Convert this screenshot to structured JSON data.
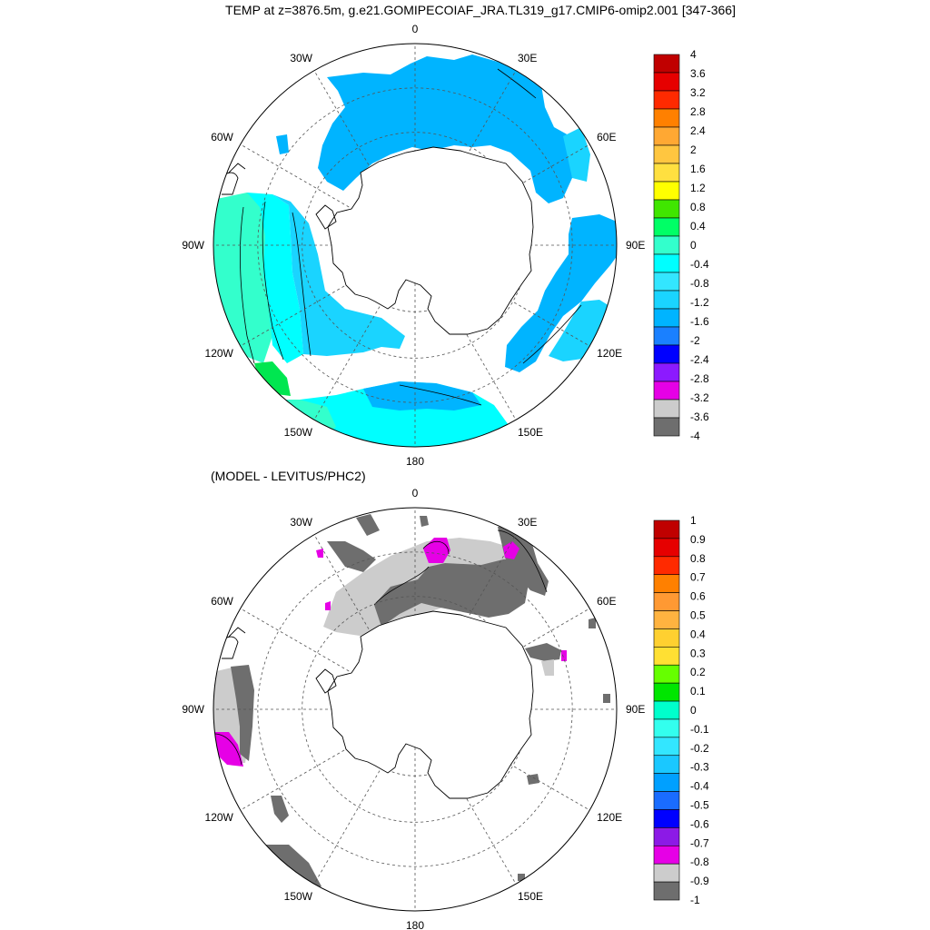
{
  "title": "TEMP at z=3876.5m, g.e21.GOMIPECOIAF_JRA.TL319_g17.CMIP6-omip2.001 [347-366]",
  "subtitle": "(MODEL - LEVITUS/PHC2)",
  "longitude_labels": [
    "0",
    "30E",
    "60E",
    "90E",
    "120E",
    "150E",
    "180",
    "150W",
    "120W",
    "90W",
    "60W",
    "30W"
  ],
  "panels": [
    {
      "id": "model",
      "colorbar": {
        "labels": [
          "4",
          "3.6",
          "3.2",
          "2.8",
          "2.4",
          "2",
          "1.6",
          "1.2",
          "0.8",
          "0.4",
          "0",
          "-0.4",
          "-0.8",
          "-1.2",
          "-1.6",
          "-2",
          "-2.4",
          "-2.8",
          "-3.2",
          "-3.6",
          "-4"
        ],
        "colors": [
          "#c00000",
          "#e60000",
          "#ff2a00",
          "#ff8000",
          "#ffa833",
          "#ffc640",
          "#ffe040",
          "#ffff00",
          "#40e600",
          "#00ff66",
          "#33ffcc",
          "#00ffff",
          "#33e6ff",
          "#1ad4ff",
          "#00b4ff",
          "#1a80ff",
          "#0000ff",
          "#8c1aff",
          "#e600e6",
          "#cccccc",
          "#6e6e6e"
        ]
      }
    },
    {
      "id": "difference",
      "colorbar": {
        "labels": [
          "1",
          "0.9",
          "0.8",
          "0.7",
          "0.6",
          "0.5",
          "0.4",
          "0.3",
          "0.2",
          "0.1",
          "0",
          "-0.1",
          "-0.2",
          "-0.3",
          "-0.4",
          "-0.5",
          "-0.6",
          "-0.7",
          "-0.8",
          "-0.9",
          "-1"
        ],
        "colors": [
          "#c00000",
          "#e60000",
          "#ff2a00",
          "#ff8000",
          "#ff9933",
          "#ffb340",
          "#ffd030",
          "#ffe033",
          "#66ff00",
          "#00e600",
          "#00ffcc",
          "#33ffee",
          "#33e6ff",
          "#1ac8ff",
          "#00a0ff",
          "#1a6cff",
          "#0000ff",
          "#8c1ae6",
          "#e600e6",
          "#cccccc",
          "#6e6e6e"
        ]
      }
    }
  ],
  "colors": {
    "land": "#ffffff",
    "coast": "#000000",
    "grid": "#555555",
    "ocean_main": "#00b4ff",
    "ocean_mid": "#1ad4ff",
    "ocean_cyan": "#00ffff",
    "ocean_teal": "#33ffcc",
    "ocean_green": "#00e650",
    "diff_light": "#cccccc",
    "diff_dark": "#6e6e6e",
    "diff_magenta": "#e600e6"
  }
}
